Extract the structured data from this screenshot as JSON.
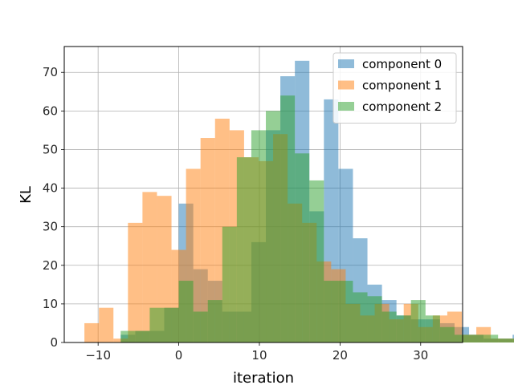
{
  "chart_data": {
    "type": "histogram",
    "xlabel": "iteration",
    "ylabel": "KL",
    "xlim": [
      -14.2,
      35.2
    ],
    "ylim": [
      0,
      76.7
    ],
    "xticks": [
      -10,
      0,
      10,
      20,
      30
    ],
    "yticks": [
      0,
      10,
      20,
      30,
      40,
      50,
      60,
      70
    ],
    "grid": true,
    "legend_position": "top-right",
    "bin_width": 1.8,
    "series": [
      {
        "name": "component 0",
        "color": "#1f77b4",
        "opacity": 0.5,
        "start": -7.2,
        "values": [
          2,
          3,
          3,
          9,
          36,
          19,
          16,
          8,
          8,
          26,
          55,
          69,
          73,
          34,
          63,
          45,
          27,
          15,
          11,
          7,
          6,
          6,
          5,
          4,
          2,
          1,
          1,
          2,
          1,
          2
        ]
      },
      {
        "name": "component 1",
        "color": "#ff7f0e",
        "opacity": 0.5,
        "start": -11.7,
        "values": [
          5,
          9,
          1,
          31,
          39,
          38,
          24,
          45,
          53,
          58,
          55,
          48,
          47,
          54,
          36,
          31,
          21,
          19,
          10,
          7,
          10,
          6,
          10,
          4,
          7,
          8,
          2,
          4,
          1,
          1,
          2,
          1,
          1,
          2
        ]
      },
      {
        "name": "component 2",
        "color": "#2ca02c",
        "opacity": 0.5,
        "start": -7.2,
        "values": [
          3,
          3,
          9,
          9,
          16,
          8,
          11,
          30,
          48,
          55,
          60,
          64,
          49,
          42,
          16,
          16,
          13,
          12,
          8,
          7,
          11,
          7,
          4,
          2,
          2,
          2,
          1,
          1,
          2,
          2
        ]
      }
    ]
  }
}
